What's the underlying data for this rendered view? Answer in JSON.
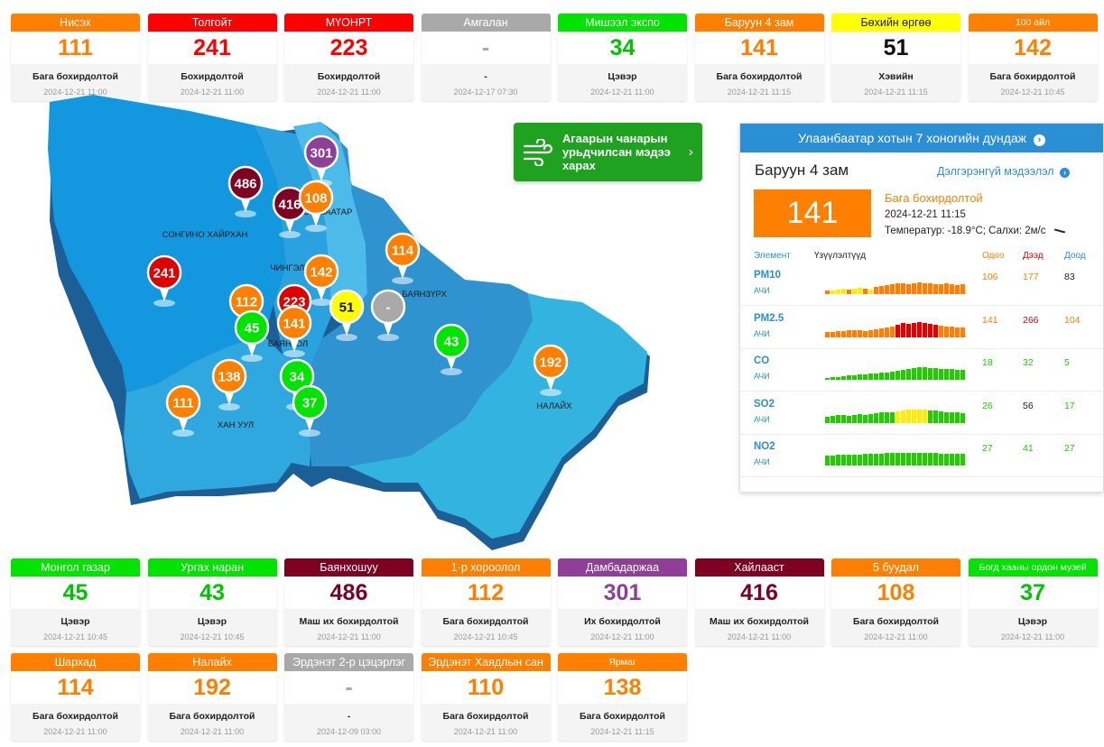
{
  "colors": {
    "good": "#00e400",
    "moderate": "#ff7f00",
    "unhealthy_sensitive": "#ff0000",
    "very_unhealthy": "#8f3f97",
    "hazardous": "#7e0023",
    "fair": "#ffff00",
    "nodata": "#a9a9a9",
    "bar_yellow": "#ffee00",
    "bar_orange": "#ff7f00",
    "bar_red": "#e00000",
    "bar_green": "#22cc00"
  },
  "top_cards": [
    {
      "name": "Нисэх",
      "value": "111",
      "status": "Бага бохирдолтой",
      "time": "2024-12-21 11:00",
      "color": "#ff7f00",
      "text_color": "#ff7f00"
    },
    {
      "name": "Толгойт",
      "value": "241",
      "status": "Бохирдолтой",
      "time": "2024-12-21 11:00",
      "color": "#ff0000",
      "text_color": "#ff0000"
    },
    {
      "name": "МҮОНРТ",
      "value": "223",
      "status": "Бохирдолтой",
      "time": "2024-12-21 11:00",
      "color": "#ff0000",
      "text_color": "#ff0000"
    },
    {
      "name": "Амгалан",
      "value": "-",
      "status": "-",
      "time": "2024-12-17 07:30",
      "color": "#a9a9a9",
      "text_color": "#a9a9a9"
    },
    {
      "name": "Мишээл экспо",
      "value": "34",
      "status": "Цэвэр",
      "time": "2024-12-21 11:00",
      "color": "#00e400",
      "text_color": "#00c400"
    },
    {
      "name": "Баруун 4 зам",
      "value": "141",
      "status": "Бага бохирдолтой",
      "time": "2024-12-21 11:15",
      "color": "#ff7f00",
      "text_color": "#ff7f00"
    },
    {
      "name": "Бөхийн өргөө",
      "value": "51",
      "status": "Хэвийн",
      "time": "2024-12-21 11:15",
      "color": "#ffff00",
      "text_color": "#111111",
      "dark_head": true
    },
    {
      "name": "100 айл",
      "value": "142",
      "status": "Бага бохирдолтой",
      "time": "2024-12-21 10:45",
      "color": "#ff7f00",
      "text_color": "#ff7f00",
      "small": true
    }
  ],
  "bottom_cards_row1": [
    {
      "name": "Монгол газар",
      "value": "45",
      "status": "Цэвэр",
      "time": "2024-12-21 10:45",
      "color": "#00e400",
      "text_color": "#00c400"
    },
    {
      "name": "Ургах наран",
      "value": "43",
      "status": "Цэвэр",
      "time": "2024-12-21 10:45",
      "color": "#00e400",
      "text_color": "#00c400"
    },
    {
      "name": "Баянхошуу",
      "value": "486",
      "status": "Маш их бохирдолтой",
      "time": "2024-12-21 11:00",
      "color": "#7e0023",
      "text_color": "#7e0023"
    },
    {
      "name": "1-р хороолол",
      "value": "112",
      "status": "Бага бохирдолтой",
      "time": "2024-12-21 10:45",
      "color": "#ff7f00",
      "text_color": "#ff7f00"
    },
    {
      "name": "Дамбадаржаа",
      "value": "301",
      "status": "Их бохирдолтой",
      "time": "2024-12-21 11:00",
      "color": "#8f3f97",
      "text_color": "#8f3f97"
    },
    {
      "name": "Хайлааст",
      "value": "416",
      "status": "Маш их бохирдолтой",
      "time": "2024-12-21 11:00",
      "color": "#7e0023",
      "text_color": "#7e0023"
    },
    {
      "name": "5 буудал",
      "value": "108",
      "status": "Бага бохирдолтой",
      "time": "2024-12-21 11:00",
      "color": "#ff7f00",
      "text_color": "#ff7f00"
    },
    {
      "name": "Богд хааны ордон музей",
      "value": "37",
      "status": "Цэвэр",
      "time": "2024-12-21 11:00",
      "color": "#00e400",
      "text_color": "#00c400",
      "small": true
    }
  ],
  "bottom_cards_row2": [
    {
      "name": "Шархад",
      "value": "114",
      "status": "Бага бохирдолтой",
      "time": "2024-12-21 11:00",
      "color": "#ff7f00",
      "text_color": "#ff7f00"
    },
    {
      "name": "Налайх",
      "value": "192",
      "status": "Бага бохирдолтой",
      "time": "2024-12-21 11:00",
      "color": "#ff7f00",
      "text_color": "#ff7f00"
    },
    {
      "name": "Эрдэнэт 2-р цэцэрлэг",
      "value": "-",
      "status": "-",
      "time": "2024-12-09 03:00",
      "color": "#a9a9a9",
      "text_color": "#a9a9a9"
    },
    {
      "name": "Эрдэнэт Хаядлын сан",
      "value": "110",
      "status": "Бага бохирдолтой",
      "time": "2024-12-21 11:00",
      "color": "#ff7f00",
      "text_color": "#ff7f00"
    },
    {
      "name": "Ярмаг",
      "value": "138",
      "status": "Бага бохирдолтой",
      "time": "2024-12-21 11:15",
      "color": "#ff7f00",
      "text_color": "#ff7f00",
      "small": true
    }
  ],
  "map": {
    "district_labels": [
      "СОНГИНО ХАЙРХАН",
      "БАЯНЗҮРХ",
      "НАЛАЙХ",
      "ХАН УУЛ",
      "БАЯНГОЛ",
      "ЧИНГЭЛТЭЙ",
      "СҮХБААТАР"
    ],
    "markers": [
      {
        "value": "301",
        "color": "#8f3f97"
      },
      {
        "value": "486",
        "color": "#7e0023"
      },
      {
        "value": "416",
        "color": "#7e0023"
      },
      {
        "value": "108",
        "color": "#ff7f00"
      },
      {
        "value": "114",
        "color": "#ff7f00"
      },
      {
        "value": "142",
        "color": "#ff7f00"
      },
      {
        "value": "241",
        "color": "#e00000"
      },
      {
        "value": "112",
        "color": "#ff7f00"
      },
      {
        "value": "223",
        "color": "#e00000"
      },
      {
        "value": "51",
        "color": "#ffff00"
      },
      {
        "value": "-",
        "color": "#a9a9a9"
      },
      {
        "value": "45",
        "color": "#00e400"
      },
      {
        "value": "141",
        "color": "#ff7f00"
      },
      {
        "value": "43",
        "color": "#00e400"
      },
      {
        "value": "138",
        "color": "#ff7f00"
      },
      {
        "value": "34",
        "color": "#00e400"
      },
      {
        "value": "37",
        "color": "#00e400"
      },
      {
        "value": "192",
        "color": "#ff7f00"
      },
      {
        "value": "111",
        "color": "#ff7f00"
      }
    ]
  },
  "forecast": {
    "label": "Агаарын чанарын урьдчилсан мэдээ харах",
    "icon": "wind-icon"
  },
  "panel": {
    "header": "Улаанбаатар хотын 7 хоногийн дундаж",
    "station": "Баруун 4 зам",
    "details_link": "Дэлгэрэнгүй мэдээлэл",
    "aqi": "141",
    "status": "Бага бохирдолтой",
    "time": "2024-12-21 11:15",
    "weather": "Температур: -18.9°C; Салхи: 2м/с",
    "col_element": "Элемент",
    "col_indicators": "Үзүүлэлтүүд",
    "col_now": "Одоо",
    "col_max": "Дээд",
    "col_min": "Доод",
    "pollutants": [
      {
        "name": "PM10",
        "sub": "АЧИ",
        "now": "106",
        "max": "177",
        "min": "83",
        "bars": [
          4,
          4,
          5,
          6,
          5,
          6,
          7,
          6,
          5,
          8,
          9,
          10,
          11,
          12,
          12,
          11,
          12,
          13,
          12,
          12,
          11,
          11,
          12,
          11,
          10,
          11
        ],
        "bar_colors": [
          "#ff7f00",
          "#ffee00",
          "#ffee00",
          "#ffee00",
          "#ff7f00",
          "#ffee00",
          "#ffee00",
          "#ff7f00",
          "#ffee00",
          "#ff7f00",
          "#ff7f00",
          "#ff7f00",
          "#ff7f00",
          "#ff7f00",
          "#ff7f00",
          "#ff7f00",
          "#ff7f00",
          "#ff7f00",
          "#ff7f00",
          "#ff7f00",
          "#ff7f00",
          "#ff7f00",
          "#ff7f00",
          "#ff7f00",
          "#ff7f00",
          "#ff7f00"
        ]
      },
      {
        "name": "PM2.5",
        "sub": "АЧИ",
        "now": "141",
        "max": "266",
        "min": "104",
        "bars": [
          6,
          6,
          7,
          7,
          8,
          8,
          8,
          7,
          8,
          9,
          10,
          11,
          12,
          14,
          16,
          15,
          16,
          17,
          16,
          15,
          14,
          13,
          12,
          12,
          11,
          11
        ],
        "bar_colors": [
          "#ff7f00",
          "#ff7f00",
          "#ff7f00",
          "#ff7f00",
          "#ff7f00",
          "#ff7f00",
          "#ff7f00",
          "#ff7f00",
          "#ff7f00",
          "#ff7f00",
          "#ff7f00",
          "#ff7f00",
          "#ff7f00",
          "#e00000",
          "#e00000",
          "#e00000",
          "#e00000",
          "#e00000",
          "#e00000",
          "#e00000",
          "#e00000",
          "#ff7f00",
          "#ff7f00",
          "#ff7f00",
          "#ff7f00",
          "#ff7f00"
        ]
      },
      {
        "name": "CO",
        "sub": "АЧИ",
        "now": "18",
        "max": "32",
        "min": "5",
        "bars": [
          2,
          3,
          3,
          4,
          5,
          5,
          6,
          6,
          7,
          7,
          8,
          8,
          9,
          10,
          11,
          12,
          13,
          14,
          14,
          13,
          13,
          12,
          12,
          12,
          11,
          11
        ],
        "bar_colors": [
          "#22cc00"
        ]
      },
      {
        "name": "SO2",
        "sub": "АЧИ",
        "now": "26",
        "max": "56",
        "min": "17",
        "bars": [
          7,
          8,
          9,
          9,
          8,
          9,
          10,
          9,
          10,
          11,
          12,
          12,
          12,
          13,
          14,
          15,
          15,
          15,
          15,
          14,
          14,
          13,
          12,
          12,
          12,
          11
        ],
        "bar_colors": [
          "#22cc00",
          "#22cc00",
          "#22cc00",
          "#22cc00",
          "#22cc00",
          "#22cc00",
          "#22cc00",
          "#22cc00",
          "#22cc00",
          "#22cc00",
          "#22cc00",
          "#22cc00",
          "#22cc00",
          "#ffee00",
          "#ffee00",
          "#ffee00",
          "#ffee00",
          "#ffee00",
          "#ffee00",
          "#22cc00",
          "#22cc00",
          "#22cc00",
          "#22cc00",
          "#22cc00",
          "#22cc00",
          "#22cc00"
        ]
      },
      {
        "name": "NO2",
        "sub": "АЧИ",
        "now": "27",
        "max": "41",
        "min": "27",
        "bars": [
          11,
          11,
          12,
          12,
          12,
          12,
          12,
          13,
          13,
          13,
          13,
          14,
          14,
          14,
          14,
          14,
          14,
          14,
          14,
          14,
          14,
          13,
          13,
          13,
          13,
          13
        ],
        "bar_colors": [
          "#22cc00"
        ]
      }
    ]
  }
}
